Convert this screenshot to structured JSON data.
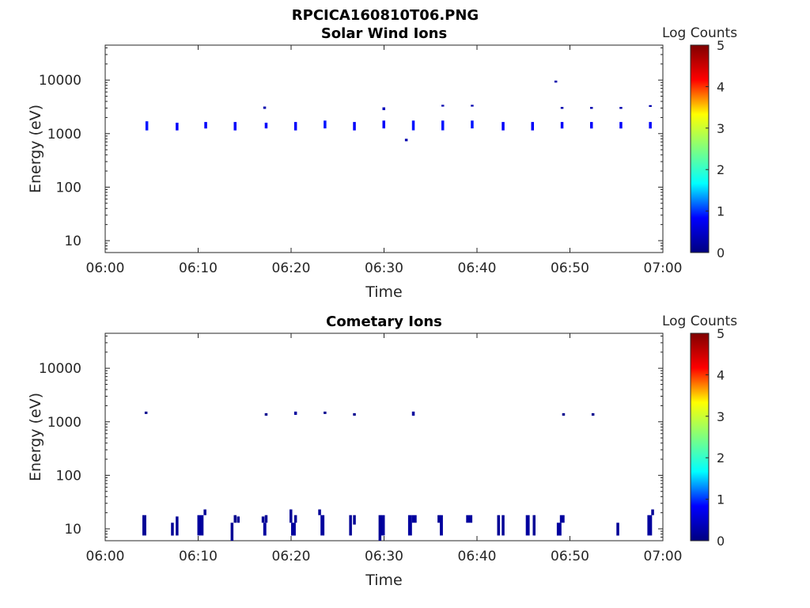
{
  "figure_title": "RPCICA160810T06.PNG",
  "colormap_stops": [
    "#00007f",
    "#0000ff",
    "#00ffff",
    "#7fff7f",
    "#ffff00",
    "#ff0000",
    "#7f0000"
  ],
  "chart_data": [
    {
      "type": "heatmap",
      "title": "Solar Wind Ions",
      "xlabel": "Time",
      "ylabel": "Energy (eV)",
      "x_scale": "time",
      "xlim": [
        "06:00",
        "07:00"
      ],
      "x_ticks": [
        "06:00",
        "06:10",
        "06:20",
        "06:30",
        "06:40",
        "06:50",
        "07:00"
      ],
      "y_scale": "log",
      "ylim": [
        6,
        45000
      ],
      "y_ticks": [
        10,
        100,
        1000,
        10000
      ],
      "y_tick_labels": [
        "10",
        "100",
        "1000",
        "10000"
      ],
      "colorbar": {
        "label": "Log Counts",
        "range": [
          0,
          5
        ],
        "ticks": [
          "0",
          "1",
          "2",
          "3",
          "4",
          "5"
        ]
      },
      "cells": [
        {
          "t": "06:04:20",
          "e_min": 1150,
          "e_max": 1700,
          "log_counts": 0.9
        },
        {
          "t": "06:07:35",
          "e_min": 1150,
          "e_max": 1600,
          "log_counts": 0.8
        },
        {
          "t": "06:10:40",
          "e_min": 1250,
          "e_max": 1650,
          "log_counts": 0.8
        },
        {
          "t": "06:13:50",
          "e_min": 1150,
          "e_max": 1650,
          "log_counts": 0.8
        },
        {
          "t": "06:17:00",
          "e_min": 2900,
          "e_max": 3200,
          "log_counts": 0.3
        },
        {
          "t": "06:17:10",
          "e_min": 1250,
          "e_max": 1600,
          "log_counts": 0.8
        },
        {
          "t": "06:20:20",
          "e_min": 1150,
          "e_max": 1650,
          "log_counts": 0.8
        },
        {
          "t": "06:23:30",
          "e_min": 1250,
          "e_max": 1750,
          "log_counts": 0.9
        },
        {
          "t": "06:26:40",
          "e_min": 1150,
          "e_max": 1650,
          "log_counts": 0.8
        },
        {
          "t": "06:29:50",
          "e_min": 1250,
          "e_max": 1750,
          "log_counts": 0.8
        },
        {
          "t": "06:29:50",
          "e_min": 2750,
          "e_max": 3100,
          "log_counts": 0.4
        },
        {
          "t": "06:32:15",
          "e_min": 720,
          "e_max": 800,
          "log_counts": 0.3
        },
        {
          "t": "06:33:00",
          "e_min": 1150,
          "e_max": 1750,
          "log_counts": 0.9
        },
        {
          "t": "06:36:10",
          "e_min": 3200,
          "e_max": 3450,
          "log_counts": 0.3
        },
        {
          "t": "06:36:10",
          "e_min": 1150,
          "e_max": 1750,
          "log_counts": 0.9
        },
        {
          "t": "06:39:20",
          "e_min": 3200,
          "e_max": 3450,
          "log_counts": 0.3
        },
        {
          "t": "06:39:20",
          "e_min": 1250,
          "e_max": 1750,
          "log_counts": 0.9
        },
        {
          "t": "06:42:40",
          "e_min": 1150,
          "e_max": 1650,
          "log_counts": 0.8
        },
        {
          "t": "06:45:50",
          "e_min": 1150,
          "e_max": 1650,
          "log_counts": 0.8
        },
        {
          "t": "06:48:20",
          "e_min": 9000,
          "e_max": 9800,
          "log_counts": 0.3
        },
        {
          "t": "06:49:00",
          "e_min": 2900,
          "e_max": 3150,
          "log_counts": 0.3
        },
        {
          "t": "06:49:00",
          "e_min": 1250,
          "e_max": 1650,
          "log_counts": 0.8
        },
        {
          "t": "06:52:10",
          "e_min": 2900,
          "e_max": 3150,
          "log_counts": 0.3
        },
        {
          "t": "06:52:10",
          "e_min": 1250,
          "e_max": 1650,
          "log_counts": 0.8
        },
        {
          "t": "06:55:20",
          "e_min": 2900,
          "e_max": 3150,
          "log_counts": 0.3
        },
        {
          "t": "06:55:20",
          "e_min": 1250,
          "e_max": 1650,
          "log_counts": 0.8
        },
        {
          "t": "06:58:30",
          "e_min": 3150,
          "e_max": 3400,
          "log_counts": 0.3
        },
        {
          "t": "06:58:30",
          "e_min": 1250,
          "e_max": 1650,
          "log_counts": 0.8
        }
      ]
    },
    {
      "type": "heatmap",
      "title": "Cometary Ions",
      "xlabel": "Time",
      "ylabel": "Energy (eV)",
      "x_scale": "time",
      "xlim": [
        "06:00",
        "07:00"
      ],
      "x_ticks": [
        "06:00",
        "06:10",
        "06:20",
        "06:30",
        "06:40",
        "06:50",
        "07:00"
      ],
      "y_scale": "log",
      "ylim": [
        6,
        45000
      ],
      "y_ticks": [
        10,
        100,
        1000,
        10000
      ],
      "y_tick_labels": [
        "10",
        "100",
        "1000",
        "10000"
      ],
      "colorbar": {
        "label": "Log Counts",
        "range": [
          0,
          5
        ],
        "ticks": [
          "0",
          "1",
          "2",
          "3",
          "4",
          "5"
        ]
      },
      "cells": [
        {
          "t": "06:04:15",
          "e_min": 1400,
          "e_max": 1550,
          "log_counts": 0.1
        },
        {
          "t": "06:17:10",
          "e_min": 1300,
          "e_max": 1450,
          "log_counts": 0.1
        },
        {
          "t": "06:20:20",
          "e_min": 1350,
          "e_max": 1550,
          "log_counts": 0.2
        },
        {
          "t": "06:23:30",
          "e_min": 1400,
          "e_max": 1550,
          "log_counts": 0.1
        },
        {
          "t": "06:26:40",
          "e_min": 1300,
          "e_max": 1450,
          "log_counts": 0.1
        },
        {
          "t": "06:33:00",
          "e_min": 1300,
          "e_max": 1550,
          "log_counts": 0.2
        },
        {
          "t": "06:49:10",
          "e_min": 1300,
          "e_max": 1450,
          "log_counts": 0.1
        },
        {
          "t": "06:52:20",
          "e_min": 1300,
          "e_max": 1450,
          "log_counts": 0.1
        },
        {
          "t": "06:04:00",
          "t2": "06:04:25",
          "e_min": 7.5,
          "e_max": 18,
          "log_counts": 0.15
        },
        {
          "t": "06:07:05",
          "e_min": 7.5,
          "e_max": 13,
          "log_counts": 0.15
        },
        {
          "t": "06:07:35",
          "e_min": 7.5,
          "e_max": 17,
          "log_counts": 0.15
        },
        {
          "t": "06:09:55",
          "t2": "06:10:35",
          "e_min": 7.5,
          "e_max": 18,
          "log_counts": 0.2
        },
        {
          "t": "06:10:35",
          "e_min": 18,
          "e_max": 23,
          "log_counts": 0.15
        },
        {
          "t": "06:13:30",
          "e_min": 6,
          "e_max": 13,
          "log_counts": 0.15
        },
        {
          "t": "06:13:50",
          "e_min": 13,
          "e_max": 18,
          "log_counts": 0.1
        },
        {
          "t": "06:14:10",
          "e_min": 13,
          "e_max": 17,
          "log_counts": 0.15
        },
        {
          "t": "06:16:50",
          "e_min": 13,
          "e_max": 17,
          "log_counts": 0.15
        },
        {
          "t": "06:17:00",
          "t2": "06:17:20",
          "e_min": 7.5,
          "e_max": 13,
          "log_counts": 0.2
        },
        {
          "t": "06:17:10",
          "e_min": 13,
          "e_max": 18,
          "log_counts": 0.15
        },
        {
          "t": "06:19:50",
          "e_min": 13,
          "e_max": 23,
          "log_counts": 0.15
        },
        {
          "t": "06:20:00",
          "t2": "06:20:30",
          "e_min": 7.5,
          "e_max": 13,
          "log_counts": 0.2
        },
        {
          "t": "06:20:20",
          "e_min": 13,
          "e_max": 18,
          "log_counts": 0.15
        },
        {
          "t": "06:22:55",
          "e_min": 18,
          "e_max": 23,
          "log_counts": 0.15
        },
        {
          "t": "06:23:10",
          "t2": "06:23:35",
          "e_min": 7.5,
          "e_max": 18,
          "log_counts": 0.2
        },
        {
          "t": "06:26:15",
          "e_min": 7.5,
          "e_max": 18,
          "log_counts": 0.15
        },
        {
          "t": "06:26:40",
          "e_min": 12,
          "e_max": 18,
          "log_counts": 0.15
        },
        {
          "t": "06:29:25",
          "e_min": 6,
          "e_max": 18,
          "log_counts": 0.15
        },
        {
          "t": "06:29:40",
          "t2": "06:30:05",
          "e_min": 7.5,
          "e_max": 18,
          "log_counts": 0.2
        },
        {
          "t": "06:32:35",
          "t2": "06:33:00",
          "e_min": 7.5,
          "e_max": 18,
          "log_counts": 0.2
        },
        {
          "t": "06:33:00",
          "t2": "06:33:30",
          "e_min": 13,
          "e_max": 18,
          "log_counts": 0.2
        },
        {
          "t": "06:35:45",
          "e_min": 13,
          "e_max": 18,
          "log_counts": 0.15
        },
        {
          "t": "06:36:00",
          "t2": "06:36:20",
          "e_min": 7.5,
          "e_max": 18,
          "log_counts": 0.2
        },
        {
          "t": "06:38:50",
          "t2": "06:39:30",
          "e_min": 13,
          "e_max": 18,
          "log_counts": 0.2
        },
        {
          "t": "06:42:10",
          "e_min": 7.5,
          "e_max": 18,
          "log_counts": 0.15
        },
        {
          "t": "06:42:40",
          "e_min": 7.5,
          "e_max": 18,
          "log_counts": 0.15
        },
        {
          "t": "06:45:15",
          "t2": "06:45:40",
          "e_min": 7.5,
          "e_max": 18,
          "log_counts": 0.2
        },
        {
          "t": "06:46:00",
          "e_min": 7.5,
          "e_max": 18,
          "log_counts": 0.15
        },
        {
          "t": "06:48:35",
          "t2": "06:49:05",
          "e_min": 7.5,
          "e_max": 13,
          "log_counts": 0.2
        },
        {
          "t": "06:48:55",
          "t2": "06:49:25",
          "e_min": 13,
          "e_max": 18,
          "log_counts": 0.2
        },
        {
          "t": "06:55:00",
          "e_min": 7.5,
          "e_max": 13,
          "log_counts": 0.15
        },
        {
          "t": "06:58:20",
          "t2": "06:58:50",
          "e_min": 7.5,
          "e_max": 18,
          "log_counts": 0.2
        },
        {
          "t": "06:58:45",
          "e_min": 18,
          "e_max": 23,
          "log_counts": 0.15
        }
      ]
    }
  ]
}
